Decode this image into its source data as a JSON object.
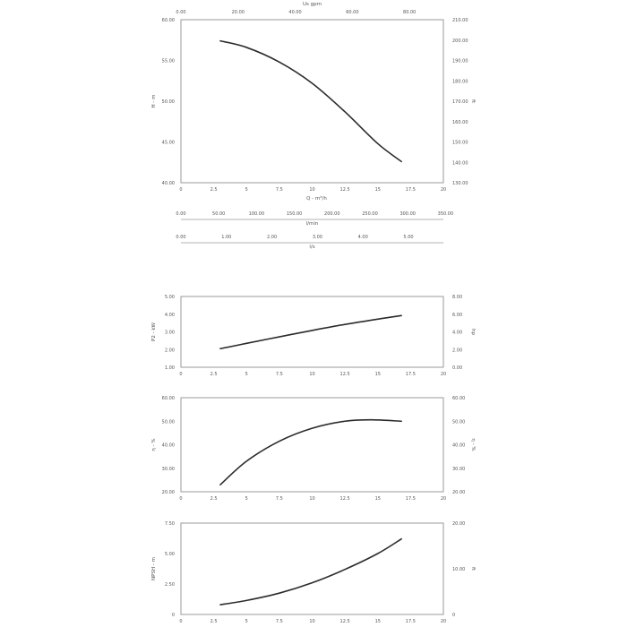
{
  "chart_data": [
    {
      "type": "line",
      "ylabel": "H - m",
      "y2label": "ft",
      "xlabel": "Q - m³/h",
      "xlim": [
        0,
        20
      ],
      "xticks": [
        "0",
        "2.5",
        "5",
        "7.5",
        "10",
        "12.5",
        "15",
        "17.5",
        "20"
      ],
      "ylim": [
        40,
        60
      ],
      "yticks": [
        "40.00",
        "45.00",
        "50.00",
        "55.00",
        "60.00"
      ],
      "y2lim": [
        130,
        210
      ],
      "y2ticks": [
        "130.00",
        "140.00",
        "150.00",
        "160.00",
        "170.00",
        "180.00",
        "190.00",
        "200.00",
        "210.00"
      ],
      "top_axis": {
        "label": "Us gpm",
        "ticks": [
          "0.00",
          "20.00",
          "40.00",
          "60.00",
          "80.00"
        ]
      },
      "extra_axes": [
        {
          "label": "l/min",
          "ticks": [
            "0.00",
            "50.00",
            "100.00",
            "150.00",
            "200.00",
            "250.00",
            "300.00",
            "350.00"
          ]
        },
        {
          "label": "l/s",
          "ticks": [
            "0.00",
            "1.00",
            "2.00",
            "3.00",
            "4.00",
            "5.00"
          ]
        }
      ],
      "series": [
        {
          "x": [
            3.0,
            5.0,
            7.5,
            10.0,
            12.5,
            15.0,
            16.8
          ],
          "y": [
            57.4,
            56.6,
            54.8,
            52.2,
            48.7,
            44.8,
            42.6
          ]
        }
      ]
    },
    {
      "type": "line",
      "ylabel": "P2 - kW",
      "y2label": "hp",
      "xlim": [
        0,
        20
      ],
      "xticks": [
        "0",
        "2.5",
        "5",
        "7.5",
        "10",
        "12.5",
        "15",
        "17.5",
        "20"
      ],
      "ylim": [
        1,
        5
      ],
      "yticks": [
        "1.00",
        "2.00",
        "3.00",
        "4.00",
        "5.00"
      ],
      "y2lim": [
        0,
        8
      ],
      "y2ticks": [
        "0.00",
        "2.00",
        "4.00",
        "6.00",
        "8.00"
      ],
      "series": [
        {
          "x": [
            3.0,
            5.0,
            7.5,
            10.0,
            12.5,
            15.0,
            16.8
          ],
          "y": [
            2.05,
            2.35,
            2.72,
            3.08,
            3.42,
            3.72,
            3.92
          ]
        }
      ]
    },
    {
      "type": "line",
      "ylabel": "η - %",
      "y2label": "η - %",
      "xlim": [
        0,
        20
      ],
      "xticks": [
        "0",
        "2.5",
        "5",
        "7.5",
        "10",
        "12.5",
        "15",
        "17.5",
        "20"
      ],
      "ylim": [
        20,
        60
      ],
      "yticks": [
        "20.00",
        "30.00",
        "40.00",
        "50.00",
        "60.00"
      ],
      "y2lim": [
        20,
        60
      ],
      "y2ticks": [
        "20.00",
        "30.00",
        "40.00",
        "50.00",
        "60.00"
      ],
      "series": [
        {
          "x": [
            3.0,
            5.0,
            7.5,
            10.0,
            12.5,
            14.5,
            16.8
          ],
          "y": [
            23.0,
            33.0,
            41.5,
            47.0,
            50.0,
            50.6,
            50.0
          ]
        }
      ]
    },
    {
      "type": "line",
      "ylabel": "NPSH - m",
      "y2label": "ft",
      "xlabel": "Q - m³/h",
      "xlim": [
        0,
        20
      ],
      "xticks": [
        "0",
        "2.5",
        "5",
        "7.5",
        "10",
        "12.5",
        "15",
        "17.5",
        "20"
      ],
      "ylim": [
        0,
        7.5
      ],
      "yticks": [
        "0",
        "2.50",
        "5.00",
        "7.50"
      ],
      "y2lim": [
        0,
        24.6
      ],
      "y2ticks": [
        "0",
        "10.00",
        "20.00"
      ],
      "series": [
        {
          "x": [
            3.0,
            5.0,
            7.5,
            10.0,
            12.5,
            15.0,
            16.8
          ],
          "y": [
            0.8,
            1.15,
            1.75,
            2.6,
            3.7,
            5.0,
            6.2
          ]
        }
      ]
    }
  ]
}
